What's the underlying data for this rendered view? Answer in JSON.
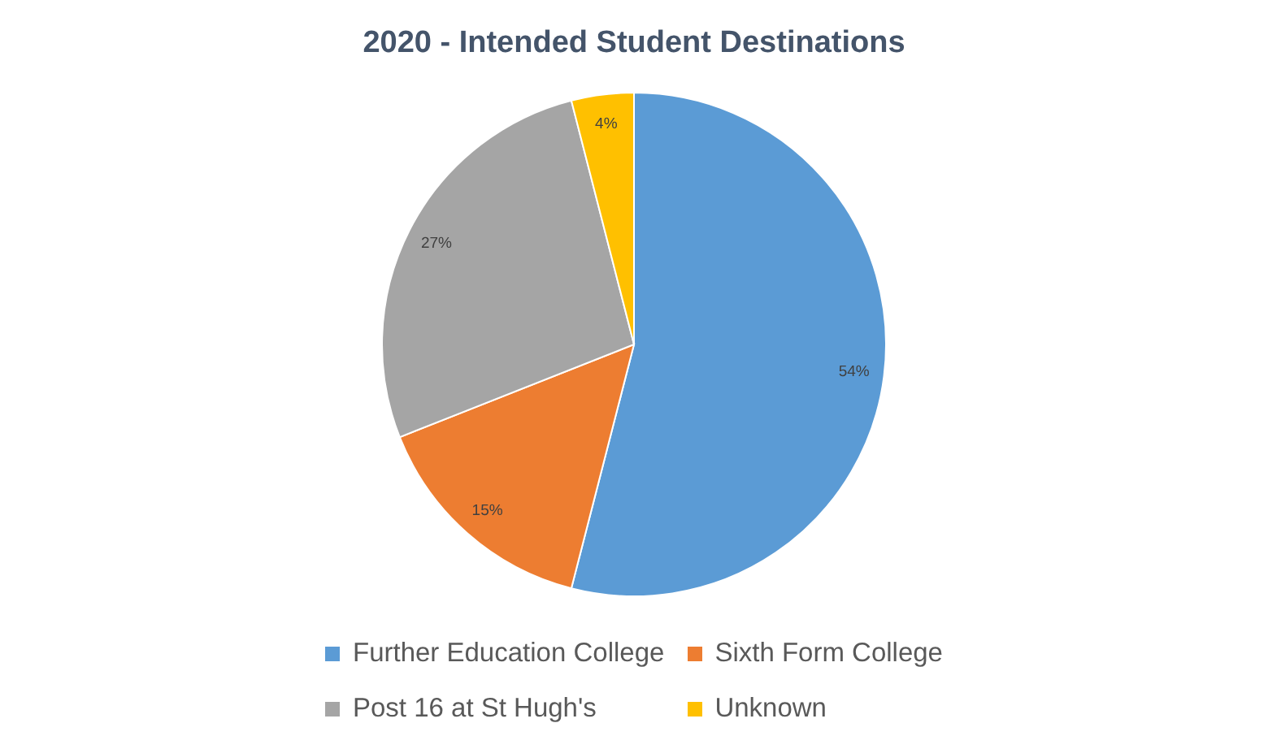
{
  "chart_data": {
    "type": "pie",
    "title": "2020 - Intended Student Destinations",
    "categories": [
      "Further Education College",
      "Sixth Form College",
      "Post 16 at St Hugh's",
      "Unknown"
    ],
    "values": [
      54,
      15,
      27,
      4
    ],
    "colors": [
      "#5b9bd5",
      "#ed7d31",
      "#a5a5a5",
      "#ffc000"
    ],
    "value_labels": [
      "54%",
      "15%",
      "27%",
      "4%"
    ],
    "legend": "bottom"
  }
}
